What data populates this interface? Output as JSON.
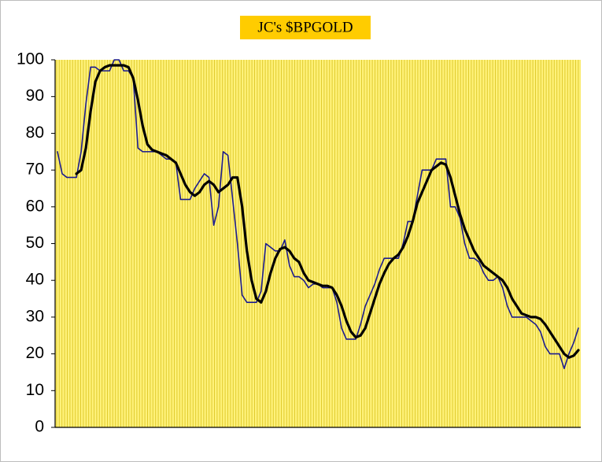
{
  "chart_data": {
    "type": "line",
    "title": "JC's $BPGOLD",
    "series": [
      {
        "color": "#1c1c8f",
        "values": [
          75,
          69,
          68,
          68,
          68,
          75,
          88,
          98,
          98,
          97,
          97,
          97,
          100,
          100,
          97,
          97,
          95,
          76,
          75,
          75,
          75,
          75,
          74,
          73,
          73,
          72,
          62,
          62,
          62,
          65,
          67,
          69,
          68,
          55,
          60,
          75,
          74,
          62,
          50,
          36,
          34,
          34,
          34,
          37,
          50,
          49,
          48,
          48,
          51,
          44,
          41,
          41,
          40,
          38,
          39,
          39,
          38,
          38,
          38,
          34,
          27,
          24,
          24,
          24,
          28,
          33,
          36,
          39,
          43,
          46,
          46,
          46,
          46,
          50,
          56,
          56,
          63,
          70,
          70,
          70,
          73,
          73,
          73,
          60,
          60,
          57,
          50,
          46,
          46,
          45,
          42,
          40,
          40,
          41,
          38,
          33,
          30,
          30,
          30,
          30,
          29,
          28,
          26,
          22,
          20,
          20,
          20,
          16,
          20,
          23,
          27
        ]
      },
      {
        "color": "#000000",
        "values": [
          null,
          null,
          null,
          null,
          69,
          70,
          76,
          86,
          94,
          97,
          98,
          98.5,
          98.5,
          98.5,
          98.5,
          98,
          95,
          89,
          82,
          77,
          75.5,
          75,
          74.5,
          74,
          73,
          72,
          69,
          66,
          64,
          63,
          64,
          66,
          67,
          66,
          64,
          65,
          66,
          68,
          68,
          60,
          48,
          40,
          35,
          34,
          37,
          42,
          46,
          48.5,
          49,
          48,
          46,
          45,
          42,
          40,
          39.5,
          39,
          38.5,
          38.5,
          38,
          36,
          33,
          29,
          26,
          24.5,
          25,
          27,
          31,
          35,
          39,
          42,
          44.5,
          46,
          47,
          49,
          52,
          56,
          61,
          64,
          67,
          70,
          71,
          72,
          71.5,
          68,
          63,
          58,
          54,
          51,
          48,
          46,
          44,
          43,
          42,
          41,
          40,
          38,
          35,
          33,
          31,
          30.5,
          30,
          30,
          29.5,
          28,
          26,
          24,
          22,
          20,
          19,
          19.5,
          21
        ]
      }
    ],
    "ylim": [
      0,
      100
    ],
    "yticks": [
      0,
      10,
      20,
      30,
      40,
      50,
      60,
      70,
      80,
      90,
      100
    ]
  }
}
